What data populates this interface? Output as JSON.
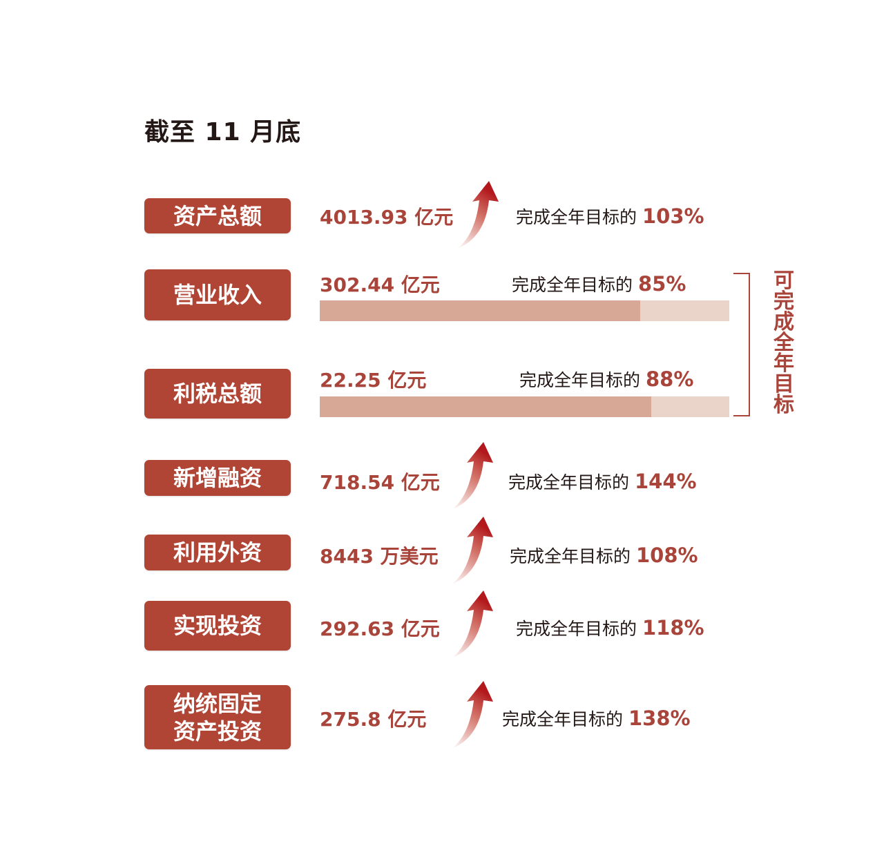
{
  "title": "截至 11 月底",
  "goal_prefix": "完成全年目标的",
  "bracket_note": "可完成全年目标",
  "colors": {
    "accent": "#b04535",
    "bar_fill": "#d7a895",
    "bar_track": "#ead3c8",
    "text": "#231815"
  },
  "chart_data": {
    "type": "bar",
    "categories": [
      "资产总额",
      "营业收入",
      "利税总额",
      "新增融资",
      "利用外资",
      "实现投资",
      "纳统固定资产投资"
    ],
    "values": [
      "4013.93 亿元",
      "302.44 亿元",
      "22.25 亿元",
      "718.54 亿元",
      "8443 万美元",
      "292.63 亿元",
      "275.8 亿元"
    ],
    "completion_pct": [
      103,
      85,
      88,
      144,
      108,
      118,
      138
    ],
    "completion_labels": [
      "103%",
      "85%",
      "88%",
      "144%",
      "108%",
      "118%",
      "138%"
    ],
    "indicator": [
      "up-arrow",
      "progress-bar",
      "progress-bar",
      "up-arrow",
      "up-arrow",
      "up-arrow",
      "up-arrow"
    ]
  },
  "rows": [
    {
      "label": "资产总额",
      "value": "4013.93 亿元",
      "pct": "103%",
      "icon": "up-arrow-icon"
    },
    {
      "label": "营业收入",
      "value": "302.44 亿元",
      "pct": "85%",
      "progress": 85
    },
    {
      "label": "利税总额",
      "value": "22.25 亿元",
      "pct": "88%",
      "progress": 88
    },
    {
      "label": "新增融资",
      "value": "718.54 亿元",
      "pct": "144%",
      "icon": "up-arrow-icon"
    },
    {
      "label": "利用外资",
      "value": "8443 万美元",
      "pct": "108%",
      "icon": "up-arrow-icon"
    },
    {
      "label": "实现投资",
      "value": "292.63 亿元",
      "pct": "118%",
      "icon": "up-arrow-icon"
    },
    {
      "label": "纳统固定资产投资",
      "label_lines": [
        "纳统固定",
        "资产投资"
      ],
      "value": "275.8 亿元",
      "pct": "138%",
      "icon": "up-arrow-icon"
    }
  ]
}
